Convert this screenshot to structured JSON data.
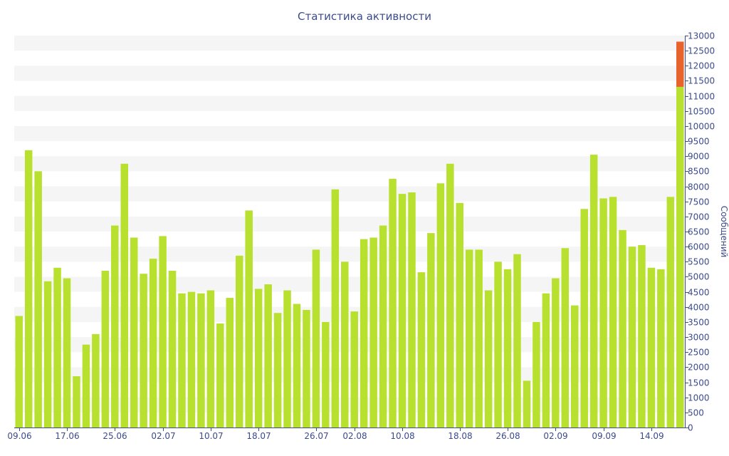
{
  "chart_data": {
    "type": "bar",
    "title": "Статистика активности",
    "xlabel": "",
    "ylabel": "Сообщений",
    "ylim": [
      0,
      13000
    ],
    "ytick_step": 500,
    "y_axis_position": "right",
    "grid": "horizontal alternating bands",
    "x_tick_labels": [
      "09.06",
      "17.06",
      "25.06",
      "02.07",
      "10.07",
      "18.07",
      "26.07",
      "02.08",
      "10.08",
      "18.08",
      "26.08",
      "02.09",
      "09.09",
      "14.09"
    ],
    "x_tick_bar_index": [
      0,
      5,
      10,
      15,
      20,
      25,
      31,
      35,
      40,
      46,
      51,
      56,
      61,
      66
    ],
    "colors": {
      "bar": "#b8e02e",
      "highlight": "#e8622c",
      "band": "#f5f5f5",
      "axis": "#3b4b8c"
    },
    "series": [
      {
        "values": [
          3700,
          9200,
          8500,
          4850,
          5300,
          4950,
          1700,
          2750,
          3100,
          5200,
          6700,
          8750,
          6300,
          5100,
          5600,
          6350,
          5200,
          4450,
          4500,
          4450,
          4550,
          3450,
          4300,
          5700,
          7200,
          4600,
          4750,
          3800,
          4550,
          4100,
          3900,
          5900,
          3500,
          7900,
          5500,
          3850,
          6250,
          6300,
          6700,
          8250,
          7750,
          7800,
          5150,
          6450,
          8100,
          8750,
          7450,
          5900,
          5900,
          4550,
          5500,
          5250,
          5750,
          1550,
          3500,
          4450,
          4950,
          5950,
          4050,
          7250,
          9050,
          7600,
          7650,
          6550,
          6000,
          6050,
          5300,
          5250,
          7650,
          11300
        ]
      },
      {
        "values": [
          0,
          0,
          0,
          0,
          0,
          0,
          0,
          0,
          0,
          0,
          0,
          0,
          0,
          0,
          0,
          0,
          0,
          0,
          0,
          0,
          0,
          0,
          0,
          0,
          0,
          0,
          0,
          0,
          0,
          0,
          0,
          0,
          0,
          0,
          0,
          0,
          0,
          0,
          0,
          0,
          0,
          0,
          0,
          0,
          0,
          0,
          0,
          0,
          0,
          0,
          0,
          0,
          0,
          0,
          0,
          0,
          0,
          0,
          0,
          0,
          0,
          0,
          0,
          0,
          0,
          0,
          0,
          0,
          0,
          1500
        ]
      }
    ]
  }
}
